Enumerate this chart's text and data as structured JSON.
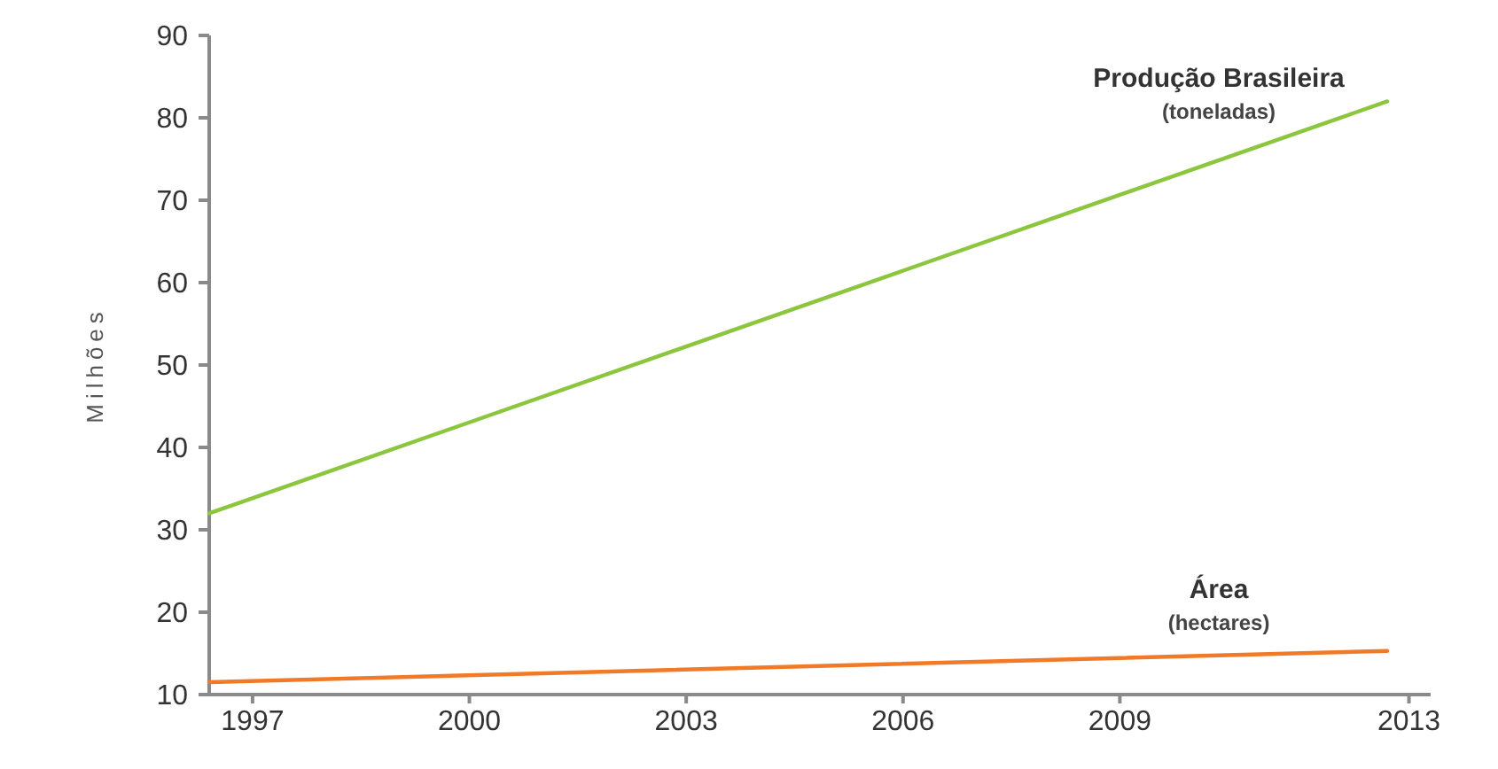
{
  "chart_data": {
    "type": "line",
    "ylabel": "Milhões",
    "x": [
      1996.4,
      2012.7
    ],
    "xlim": [
      1996.4,
      2013.3
    ],
    "xticks": [
      1997,
      2000,
      2003,
      2006,
      2009,
      2013
    ],
    "ylim": [
      10,
      90
    ],
    "yticks": [
      10,
      20,
      30,
      40,
      50,
      60,
      70,
      80,
      90
    ],
    "grid": false,
    "legend": false,
    "marker": "none",
    "series": [
      {
        "name": "Produção Brasileira",
        "color": "#8cc63f",
        "values": [
          32,
          82
        ]
      },
      {
        "name": "Área",
        "color": "#f07a28",
        "values": [
          11.5,
          15.3
        ]
      }
    ],
    "annotations": [
      "(toneladas)",
      "(hectares)"
    ]
  }
}
